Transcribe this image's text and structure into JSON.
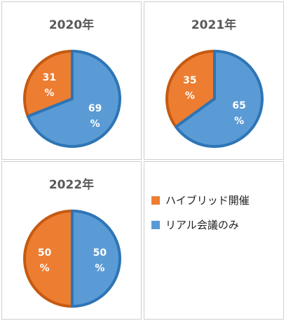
{
  "chart_data": [
    {
      "type": "pie",
      "title": "2020年",
      "categories": [
        "ハイブリッド開催",
        "リアル会議のみ"
      ],
      "values": [
        31,
        69
      ],
      "labels": [
        "31",
        "69"
      ],
      "unit": "%"
    },
    {
      "type": "pie",
      "title": "2021年",
      "categories": [
        "ハイブリッド開催",
        "リアル会議のみ"
      ],
      "values": [
        35,
        65
      ],
      "labels": [
        "35",
        "65"
      ],
      "unit": "%"
    },
    {
      "type": "pie",
      "title": "2022年",
      "categories": [
        "ハイブリッド開催",
        "リアル会議のみ"
      ],
      "values": [
        50,
        50
      ],
      "labels": [
        "50",
        "50"
      ],
      "unit": "%"
    }
  ],
  "legend": {
    "items": [
      {
        "label": "ハイブリッド開催",
        "color": "#ED7D31"
      },
      {
        "label": "リアル会議のみ",
        "color": "#5B9BD5"
      }
    ]
  },
  "colors": {
    "hybrid": "#ED7D31",
    "hybrid_dark": "#C55A11",
    "real": "#5B9BD5",
    "real_dark": "#2E75B6"
  }
}
